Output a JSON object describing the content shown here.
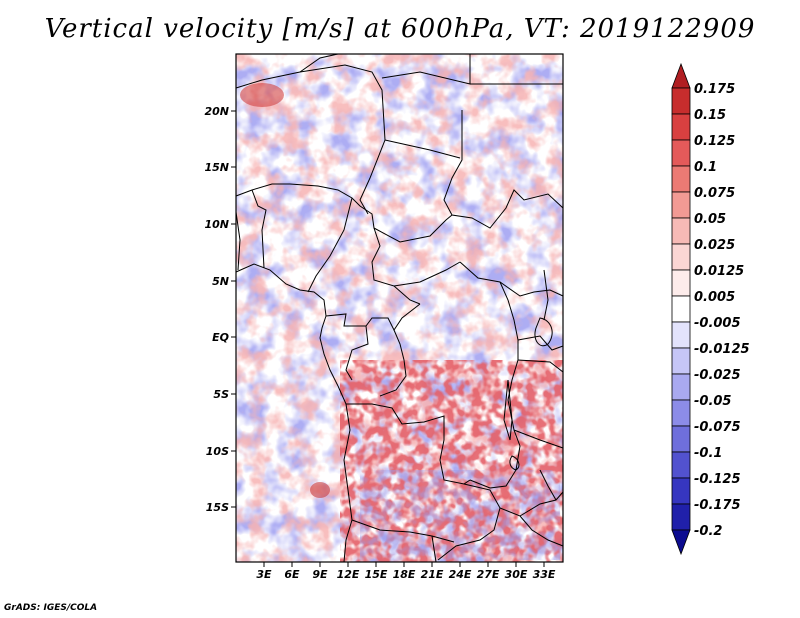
{
  "title": "Vertical velocity [m/s] at 600hPa, VT: 2019122909",
  "footer": "GrADS: IGES/COLA",
  "map": {
    "lon_labels": [
      "3E",
      "6E",
      "9E",
      "12E",
      "15E",
      "18E",
      "21E",
      "24E",
      "27E",
      "30E",
      "33E"
    ],
    "lat_labels": [
      "20N",
      "15N",
      "10N",
      "5N",
      "EQ",
      "5S",
      "10S",
      "15S"
    ]
  },
  "colorbar": {
    "levels": [
      "0.175",
      "0.15",
      "0.125",
      "0.1",
      "0.075",
      "0.05",
      "0.025",
      "0.0125",
      "0.005",
      "-0.005",
      "-0.0125",
      "-0.025",
      "-0.05",
      "-0.075",
      "-0.1",
      "-0.125",
      "-0.175",
      "-0.2"
    ],
    "colors": [
      "#b01e22",
      "#c72d2d",
      "#d94040",
      "#e45a5a",
      "#ec7a74",
      "#f29a94",
      "#f7bab6",
      "#fbd6d4",
      "#fdeceb",
      "#ffffff",
      "#e3e3fc",
      "#c6c6f7",
      "#a9a9f0",
      "#8c8ce8",
      "#6f6fdc",
      "#5252cf",
      "#3636c0",
      "#2020aa",
      "#0c0c90"
    ]
  }
}
